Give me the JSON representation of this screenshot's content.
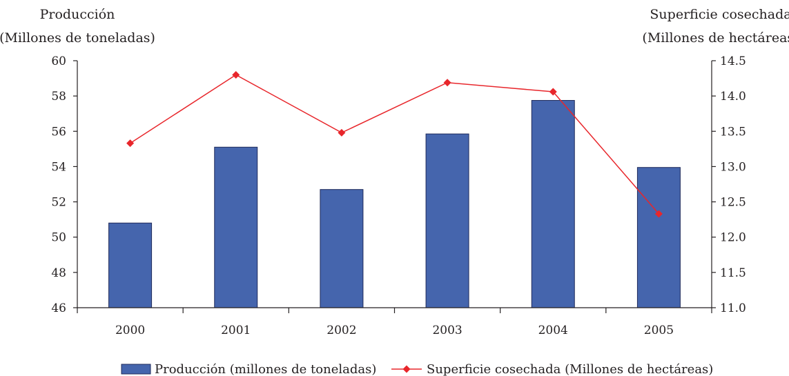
{
  "chart_data": {
    "type": "bar",
    "categories": [
      "2000",
      "2001",
      "2002",
      "2003",
      "2004",
      "2005"
    ],
    "series": [
      {
        "name": "Producción (millones de toneladas)",
        "type": "bar",
        "axis": "left",
        "color": "#4565ad",
        "values": [
          50.8,
          55.1,
          52.7,
          55.85,
          57.75,
          53.95
        ]
      },
      {
        "name": "Superficie cosechada (Millones de hectáreas)",
        "type": "line",
        "marker": "diamond",
        "axis": "right",
        "color": "#e8262b",
        "values": [
          13.33,
          14.3,
          13.48,
          14.19,
          14.06,
          12.33
        ]
      }
    ],
    "ylabel_left_line1": "Producción",
    "ylabel_left_line2": "(Millones de toneladas)",
    "ylabel_right_line1": "Superficie cosechada",
    "ylabel_right_line2": "(Millones de hectáreas)",
    "ylim_left": [
      46,
      60
    ],
    "ylim_right": [
      11.0,
      14.5
    ],
    "yticks_left": [
      "46",
      "48",
      "50",
      "52",
      "54",
      "56",
      "58",
      "60"
    ],
    "yticks_right": [
      "11.0",
      "11.5",
      "12.0",
      "12.5",
      "13.0",
      "13.5",
      "14.0",
      "14.5"
    ],
    "grid": false,
    "legend_position": "bottom"
  }
}
